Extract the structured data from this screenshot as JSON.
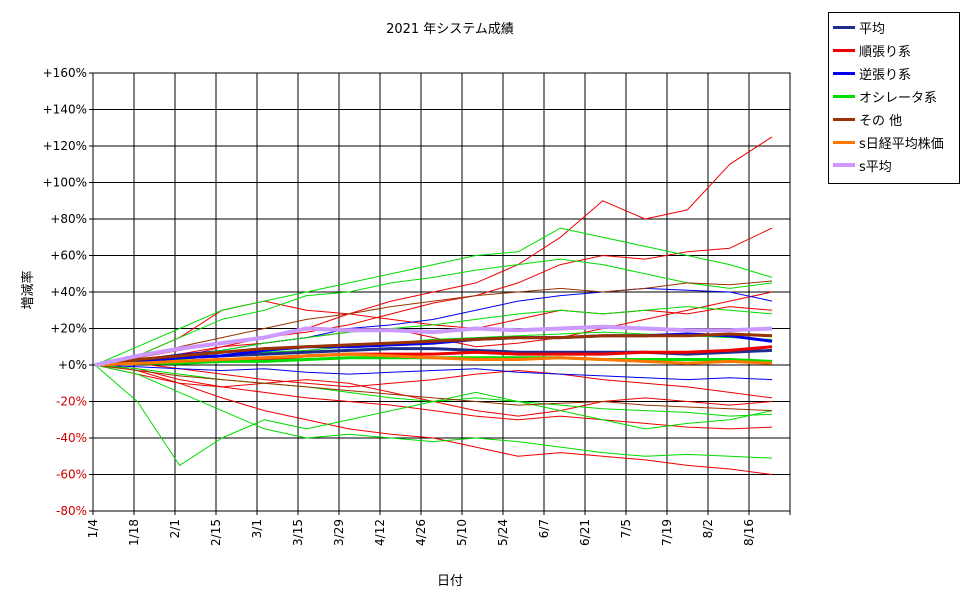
{
  "chart_data": {
    "type": "line",
    "title": "2021 年システム成績",
    "xlabel": "日付",
    "ylabel": "増減率",
    "x_ticks": [
      "1/4",
      "1/18",
      "2/1",
      "2/15",
      "3/1",
      "3/15",
      "3/29",
      "4/12",
      "4/26",
      "5/10",
      "5/24",
      "6/7",
      "6/21",
      "7/5",
      "7/19",
      "8/2",
      "8/16"
    ],
    "y_ticks": [
      "-80%",
      "-60%",
      "-40%",
      "-20%",
      "+0%",
      "+20%",
      "+40%",
      "+60%",
      "+80%",
      "+100%",
      "+120%",
      "+140%",
      "+160%"
    ],
    "ylim": [
      -80,
      160
    ],
    "grid": true,
    "legend_position": "top-right",
    "legend": [
      {
        "name": "平均",
        "color": "#1f2e8c"
      },
      {
        "name": "順張り系",
        "color": "#ee0000"
      },
      {
        "name": "逆張り系",
        "color": "#0000ee"
      },
      {
        "name": "オシレータ系",
        "color": "#00dd00"
      },
      {
        "name": "その 他",
        "color": "#993300"
      },
      {
        "name": "s日経平均株価",
        "color": "#ff7700"
      },
      {
        "name": "s平均",
        "color": "#cc99ff"
      }
    ],
    "series": [
      {
        "name": "平均",
        "color": "#1f2e8c",
        "width": 3,
        "values": [
          0,
          2,
          4,
          5,
          6,
          7,
          8,
          9,
          9,
          8,
          7,
          7,
          7,
          7,
          6,
          7,
          8
        ]
      },
      {
        "name": "順張り系",
        "color": "#ee0000",
        "width": 3,
        "values": [
          0,
          1,
          2,
          3,
          3,
          5,
          6,
          6,
          6,
          7,
          6,
          6,
          6,
          7,
          7,
          8,
          10
        ]
      },
      {
        "name": "逆張り系",
        "color": "#0000ee",
        "width": 3,
        "values": [
          0,
          2,
          4,
          5,
          8,
          10,
          10,
          11,
          12,
          14,
          15,
          15,
          16,
          16,
          17,
          16,
          13
        ]
      },
      {
        "name": "オシレータ系",
        "color": "#00dd00",
        "width": 3,
        "values": [
          0,
          1,
          1,
          2,
          2,
          3,
          4,
          4,
          4,
          4,
          4,
          4,
          3,
          3,
          3,
          3,
          2
        ]
      },
      {
        "name": "その 他",
        "color": "#993300",
        "width": 3,
        "values": [
          0,
          3,
          5,
          7,
          9,
          10,
          11,
          12,
          13,
          14,
          15,
          15,
          16,
          16,
          16,
          17,
          16
        ]
      },
      {
        "name": "s日経平均株価",
        "color": "#ff7700",
        "width": 3,
        "values": [
          0,
          1,
          2,
          3,
          4,
          5,
          6,
          5,
          4,
          3,
          3,
          4,
          3,
          2,
          1,
          2,
          1
        ]
      },
      {
        "name": "s平均",
        "color": "#cc99ff",
        "width": 4,
        "values": [
          0,
          5,
          9,
          12,
          15,
          20,
          19,
          19,
          18,
          20,
          19,
          20,
          21,
          20,
          19,
          19,
          20
        ]
      }
    ],
    "individual_systems": [
      {
        "group": "順張り系",
        "color": "#ee0000",
        "values": [
          0,
          -2,
          -8,
          -12,
          -15,
          -18,
          -20,
          -22,
          -25,
          -28,
          -30,
          -28,
          -30,
          -32,
          -34,
          -35,
          -34
        ]
      },
      {
        "group": "順張り系",
        "color": "#ee0000",
        "values": [
          0,
          4,
          8,
          12,
          15,
          18,
          22,
          28,
          34,
          38,
          45,
          55,
          60,
          58,
          62,
          64,
          75
        ]
      },
      {
        "group": "順張り系",
        "color": "#ee0000",
        "values": [
          0,
          3,
          6,
          10,
          15,
          20,
          28,
          35,
          40,
          45,
          55,
          70,
          90,
          80,
          85,
          110,
          125
        ]
      },
      {
        "group": "順張り系",
        "color": "#ee0000",
        "values": [
          0,
          -3,
          -10,
          -18,
          -25,
          -30,
          -35,
          -38,
          -40,
          -45,
          -50,
          -48,
          -50,
          -52,
          -55,
          -57,
          -60
        ]
      },
      {
        "group": "順張り系",
        "color": "#ee0000",
        "values": [
          0,
          5,
          15,
          30,
          35,
          30,
          28,
          25,
          22,
          20,
          25,
          30,
          28,
          30,
          28,
          32,
          30
        ]
      },
      {
        "group": "順張り系",
        "color": "#ee0000",
        "values": [
          0,
          2,
          4,
          10,
          12,
          15,
          18,
          20,
          15,
          10,
          12,
          15,
          20,
          25,
          30,
          35,
          40
        ]
      },
      {
        "group": "順張り系",
        "color": "#ee0000",
        "values": [
          0,
          -5,
          -10,
          -12,
          -10,
          -8,
          -10,
          -15,
          -20,
          -25,
          -28,
          -25,
          -20,
          -18,
          -20,
          -22,
          -20
        ]
      },
      {
        "group": "順張り系",
        "color": "#ee0000",
        "values": [
          0,
          1,
          -2,
          -5,
          -8,
          -10,
          -12,
          -10,
          -8,
          -5,
          -3,
          -5,
          -8,
          -10,
          -12,
          -15,
          -18
        ]
      },
      {
        "group": "逆張り系",
        "color": "#0000ee",
        "values": [
          0,
          3,
          6,
          8,
          12,
          15,
          20,
          22,
          25,
          30,
          35,
          38,
          40,
          42,
          41,
          40,
          35
        ]
      },
      {
        "group": "逆張り系",
        "color": "#0000ee",
        "values": [
          0,
          -1,
          -2,
          -3,
          -2,
          -4,
          -5,
          -4,
          -3,
          -2,
          -4,
          -5,
          -6,
          -7,
          -8,
          -7,
          -8
        ]
      },
      {
        "group": "オシレータ系",
        "color": "#00dd00",
        "values": [
          0,
          -20,
          -55,
          -40,
          -30,
          -35,
          -30,
          -25,
          -20,
          -15,
          -20,
          -25,
          -30,
          -35,
          -32,
          -30,
          -25
        ]
      },
      {
        "group": "オシレータ系",
        "color": "#00dd00",
        "values": [
          0,
          10,
          20,
          30,
          35,
          40,
          45,
          50,
          55,
          60,
          62,
          75,
          70,
          65,
          60,
          55,
          48
        ]
      },
      {
        "group": "オシレータ系",
        "color": "#00dd00",
        "values": [
          0,
          5,
          15,
          25,
          30,
          38,
          40,
          45,
          48,
          52,
          55,
          58,
          55,
          50,
          45,
          42,
          45
        ]
      },
      {
        "group": "オシレータ系",
        "color": "#00dd00",
        "values": [
          0,
          -5,
          -15,
          -25,
          -35,
          -40,
          -38,
          -40,
          -42,
          -40,
          -42,
          -45,
          -48,
          -50,
          -49,
          -50,
          -51
        ]
      },
      {
        "group": "オシレータ系",
        "color": "#00dd00",
        "values": [
          0,
          2,
          5,
          8,
          12,
          15,
          18,
          20,
          22,
          25,
          28,
          30,
          28,
          30,
          32,
          30,
          28
        ]
      },
      {
        "group": "オシレータ系",
        "color": "#00dd00",
        "values": [
          0,
          -2,
          -5,
          -8,
          -10,
          -12,
          -15,
          -18,
          -20,
          -18,
          -20,
          -22,
          -24,
          -25,
          -26,
          -28,
          -27
        ]
      },
      {
        "group": "オシレータ系",
        "color": "#00dd00",
        "values": [
          0,
          1,
          3,
          5,
          7,
          8,
          10,
          12,
          14,
          15,
          16,
          17,
          18,
          17,
          16,
          15,
          14
        ]
      },
      {
        "group": "その 他",
        "color": "#993300",
        "values": [
          0,
          4,
          10,
          15,
          20,
          25,
          28,
          32,
          35,
          38,
          40,
          42,
          40,
          42,
          45,
          44,
          46
        ]
      },
      {
        "group": "その 他",
        "color": "#993300",
        "values": [
          0,
          -3,
          -6,
          -8,
          -10,
          -12,
          -14,
          -16,
          -18,
          -20,
          -22,
          -21,
          -20,
          -22,
          -23,
          -24,
          -25
        ]
      }
    ]
  }
}
